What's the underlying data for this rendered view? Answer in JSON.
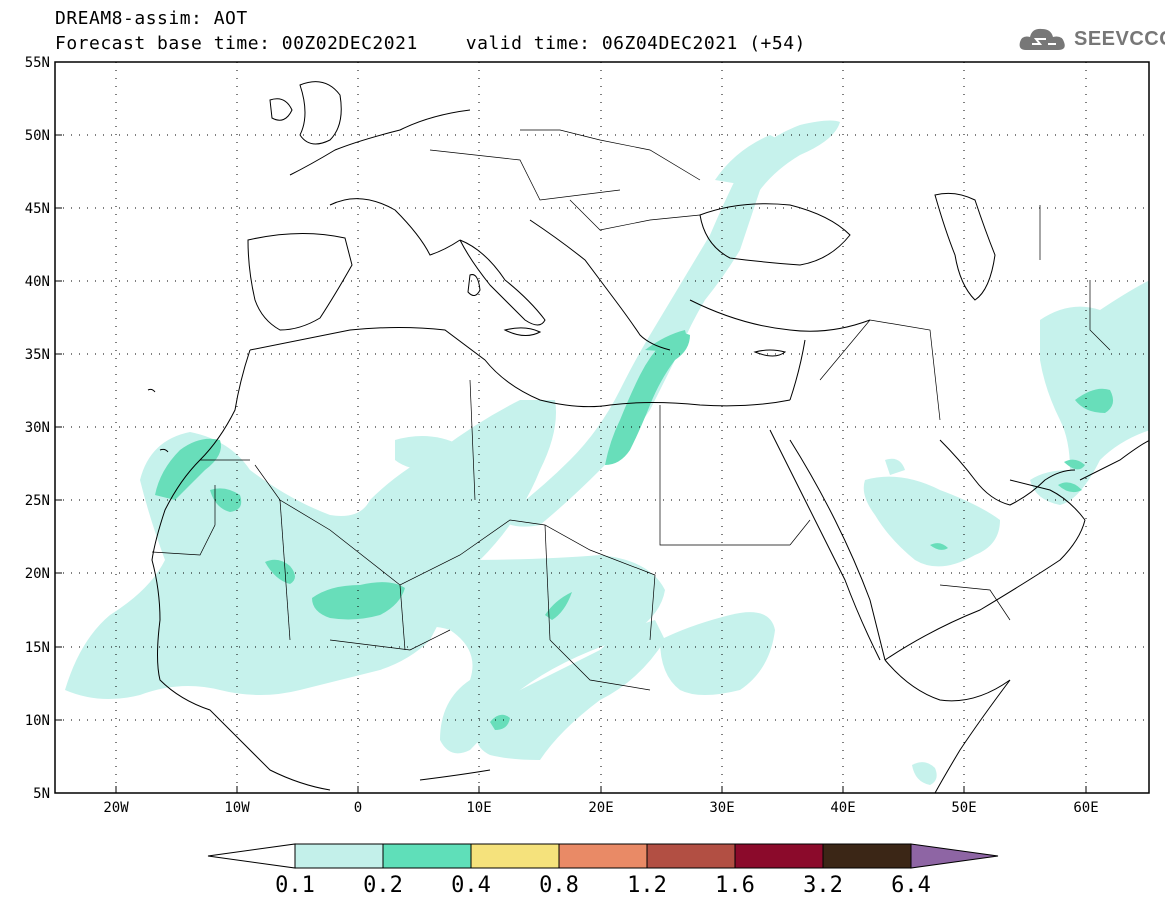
{
  "header": {
    "title_line1": "DREAM8-assim: AOT",
    "base_time": "Forecast base time: 00Z02DEC2021",
    "valid_time": "valid time: 06Z04DEC2021 (+54)",
    "logo_text": "SEEVCCC"
  },
  "map": {
    "projection": "lat-lon",
    "lon_range": [
      -25,
      65
    ],
    "lat_range": [
      5,
      55
    ],
    "lat_labels": [
      "55N",
      "50N",
      "45N",
      "40N",
      "35N",
      "30N",
      "25N",
      "20N",
      "15N",
      "10N",
      "5N"
    ],
    "lon_labels": [
      "20W",
      "10W",
      "0",
      "10E",
      "20E",
      "30E",
      "40E",
      "50E",
      "60E"
    ],
    "grid": "dotted",
    "coastline_color": "#000000"
  },
  "legend": {
    "levels": [
      "0.1",
      "0.2",
      "0.4",
      "0.8",
      "1.2",
      "1.6",
      "3.2",
      "6.4"
    ],
    "colors": [
      "#ffffff",
      "#c3f0ea",
      "#5fdfb9",
      "#f5e27c",
      "#e98a66",
      "#b24f43",
      "#8b0a2b",
      "#3b2616",
      "#8e65a4"
    ]
  },
  "field": {
    "variable": "AOT",
    "dominant_classes": [
      "0.1-0.2",
      "0.2-0.4"
    ],
    "colors": {
      "low": "#c6f2ec",
      "mid": "#68deba"
    }
  }
}
